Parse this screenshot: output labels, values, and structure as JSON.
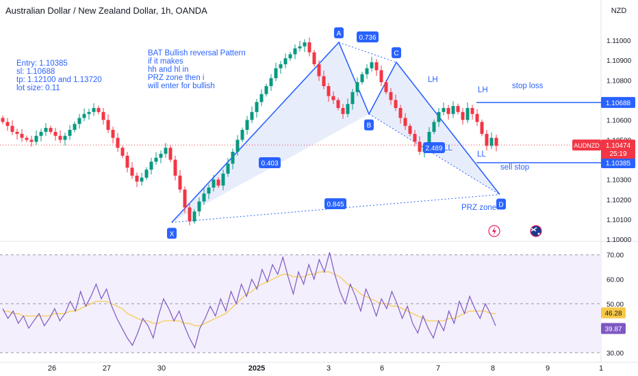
{
  "header": {
    "title": "Australian Dollar / New Zealand Dollar, 1h, OANDA",
    "currency": "NZD"
  },
  "colors": {
    "up": "#089981",
    "down": "#f23645",
    "pattern_line": "#2962ff",
    "pattern_fill": "#dbe3fb",
    "note_text": "#2962ff",
    "rsi_line": "#7e57c2",
    "rsi_ma": "#f7c948",
    "rsi_band": "#f3effc",
    "price_tag": "#f23645",
    "level_tag": "#2962ff"
  },
  "annotations": {
    "trade_note": [
      "Entry: 1.10385",
      "sl: 1.10688",
      "tp: 1.12100 and 1.13720",
      "lot size: 0.11"
    ],
    "pattern_note": [
      "BAT Bullish reversal Pattern",
      "if it makes",
      "hh and hl in",
      "PRZ zone then i",
      "will enter for bullish"
    ],
    "stop_loss_label": "stop loss",
    "sell_stop_label": "sell stop",
    "prz_label": "PRZ zone",
    "lh_label": "LH",
    "ll_label": "LL",
    "lh2_label": "LH",
    "ll2_label": "LL",
    "alert_icon": "lightning-icon",
    "event_icon": "australia-flag-icon"
  },
  "chart_data": [
    {
      "type": "candlestick",
      "title": "Australian Dollar / New Zealand Dollar, 1h, OANDA",
      "ylim": [
        1.1,
        1.111
      ],
      "y_ticks": [
        "1.11000",
        "1.10900",
        "1.10800",
        "1.10700",
        "1.10600",
        "1.10500",
        "1.10400",
        "1.10300",
        "1.10200",
        "1.10100",
        "1.10000"
      ],
      "x_ticks": [
        "26",
        "27",
        "30",
        "2025",
        "3",
        "6",
        "7",
        "8",
        "9",
        "1"
      ],
      "last_price": {
        "symbol": "AUDNZD",
        "value": "1.10474",
        "countdown": "25:19"
      },
      "levels": [
        {
          "name": "stop loss",
          "value": 1.10688,
          "label": "1.10688"
        },
        {
          "name": "sell stop",
          "value": 1.10385,
          "label": "1.10385"
        }
      ],
      "harmonic_pattern": {
        "name": "BAT",
        "points": [
          {
            "label": "X",
            "value": 1.10085
          },
          {
            "label": "A",
            "value": 1.1099
          },
          {
            "label": "B",
            "value": 1.1063
          },
          {
            "label": "C",
            "value": 1.1089
          },
          {
            "label": "D",
            "value": 1.10225
          }
        ],
        "ratios": [
          "0.736",
          "0.403",
          "2.489",
          "0.845"
        ]
      },
      "closes": [
        1.1059,
        1.1057,
        1.1054,
        1.1053,
        1.1051,
        1.105,
        1.1049,
        1.1052,
        1.1054,
        1.1056,
        1.1054,
        1.1052,
        1.105,
        1.1052,
        1.1055,
        1.1058,
        1.1061,
        1.1063,
        1.1064,
        1.1066,
        1.1064,
        1.106,
        1.1055,
        1.1051,
        1.1046,
        1.1042,
        1.1036,
        1.1032,
        1.1029,
        1.1031,
        1.1035,
        1.1039,
        1.1041,
        1.1043,
        1.1046,
        1.104,
        1.1032,
        1.1025,
        1.1016,
        1.1009,
        1.1014,
        1.1019,
        1.1023,
        1.1026,
        1.103,
        1.1027,
        1.1033,
        1.1038,
        1.1044,
        1.105,
        1.1055,
        1.106,
        1.1064,
        1.1069,
        1.1073,
        1.1077,
        1.1081,
        1.1086,
        1.1088,
        1.1091,
        1.1093,
        1.1096,
        1.1097,
        1.1099,
        1.1094,
        1.1088,
        1.1082,
        1.1077,
        1.1072,
        1.107,
        1.1066,
        1.1063,
        1.1068,
        1.1074,
        1.1079,
        1.1083,
        1.1086,
        1.1089,
        1.1085,
        1.1079,
        1.1074,
        1.107,
        1.1066,
        1.1061,
        1.1057,
        1.1053,
        1.1049,
        1.1044,
        1.1047,
        1.1054,
        1.1059,
        1.1064,
        1.1066,
        1.1063,
        1.1067,
        1.1064,
        1.106,
        1.1066,
        1.1063,
        1.1059,
        1.1053,
        1.1047,
        1.1051,
        1.1047
      ]
    },
    {
      "type": "line",
      "title": "RSI",
      "ylim": [
        28,
        73
      ],
      "y_ticks": [
        "70.00",
        "60.00",
        "50.00",
        "30.00"
      ],
      "series": [
        {
          "name": "",
          "values": [
            48,
            44,
            47,
            42,
            45,
            40,
            43,
            46,
            41,
            44,
            48,
            43,
            46,
            51,
            47,
            55,
            49,
            53,
            58,
            52,
            56,
            49,
            44,
            40,
            36,
            33,
            38,
            44,
            41,
            36,
            45,
            52,
            48,
            43,
            47,
            41,
            36,
            32,
            40,
            44,
            49,
            45,
            52,
            47,
            55,
            50,
            58,
            53,
            60,
            56,
            64,
            59,
            66,
            62,
            69,
            61,
            54,
            63,
            58,
            66,
            60,
            68,
            63,
            71,
            62,
            55,
            50,
            58,
            53,
            47,
            56,
            51,
            45,
            52,
            48,
            55,
            50,
            44,
            49,
            42,
            38,
            45,
            40,
            36,
            43,
            39,
            47,
            42,
            51,
            46,
            53,
            48,
            44,
            50,
            46,
            41
          ]
        },
        {
          "name": "",
          "values": [
            47,
            47,
            46,
            46,
            45,
            45,
            45,
            45,
            45,
            45,
            46,
            46,
            46,
            47,
            47,
            48,
            49,
            50,
            51,
            51,
            51,
            50,
            49,
            48,
            46,
            45,
            44,
            43,
            43,
            42,
            42,
            43,
            43,
            43,
            43,
            42,
            42,
            41,
            41,
            42,
            43,
            44,
            45,
            46,
            48,
            50,
            52,
            54,
            55,
            57,
            58,
            59,
            60,
            61,
            62,
            62,
            61,
            61,
            61,
            62,
            62,
            63,
            63,
            63,
            62,
            61,
            59,
            57,
            56,
            54,
            53,
            52,
            51,
            50,
            50,
            49,
            49,
            48,
            47,
            46,
            45,
            44,
            43,
            43,
            43,
            43,
            44,
            44,
            45,
            46,
            47,
            47,
            47,
            47,
            46,
            46
          ]
        }
      ],
      "last_values": {
        "ma": "46.28",
        "rsi": "39.87"
      }
    }
  ]
}
